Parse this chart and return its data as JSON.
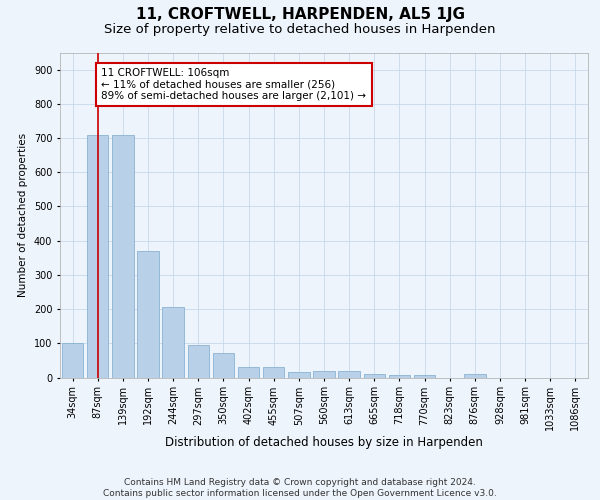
{
  "title": "11, CROFTWELL, HARPENDEN, AL5 1JG",
  "subtitle": "Size of property relative to detached houses in Harpenden",
  "xlabel": "Distribution of detached houses by size in Harpenden",
  "ylabel": "Number of detached properties",
  "categories": [
    "34sqm",
    "87sqm",
    "139sqm",
    "192sqm",
    "244sqm",
    "297sqm",
    "350sqm",
    "402sqm",
    "455sqm",
    "507sqm",
    "560sqm",
    "613sqm",
    "665sqm",
    "718sqm",
    "770sqm",
    "823sqm",
    "876sqm",
    "928sqm",
    "981sqm",
    "1033sqm",
    "1086sqm"
  ],
  "values": [
    100,
    710,
    710,
    370,
    207,
    95,
    72,
    30,
    32,
    17,
    18,
    18,
    10,
    7,
    7,
    0,
    10,
    0,
    0,
    0,
    0
  ],
  "bar_color": "#b8d0e8",
  "bar_edge_color": "#7aaace",
  "grid_color": "#c8d8ec",
  "background_color": "#eef4fb",
  "property_line_x": 1.0,
  "property_line_color": "#cc0000",
  "annotation_text": "11 CROFTWELL: 106sqm\n← 11% of detached houses are smaller (256)\n89% of semi-detached houses are larger (2,101) →",
  "annotation_box_facecolor": "#ffffff",
  "annotation_box_edgecolor": "#cc0000",
  "ylim": [
    0,
    950
  ],
  "yticks": [
    0,
    100,
    200,
    300,
    400,
    500,
    600,
    700,
    800,
    900
  ],
  "footer": "Contains HM Land Registry data © Crown copyright and database right 2024.\nContains public sector information licensed under the Open Government Licence v3.0.",
  "title_fontsize": 11,
  "subtitle_fontsize": 9.5,
  "xlabel_fontsize": 8.5,
  "ylabel_fontsize": 7.5,
  "tick_fontsize": 7,
  "annotation_fontsize": 7.5,
  "footer_fontsize": 6.5
}
